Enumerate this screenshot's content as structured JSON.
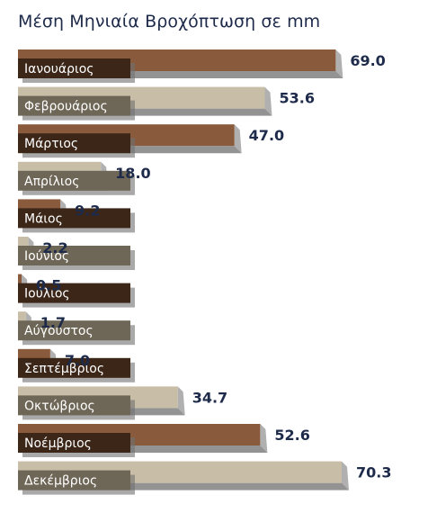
{
  "chart_data": {
    "type": "bar",
    "orientation": "horizontal",
    "title": "Μέση Μηνιαία Βροχόπτωση σε mm",
    "categories": [
      "Ιανουάριος",
      "Φεβρουάριος",
      "Μάρτιος",
      "Απρίλιος",
      "Μάιος",
      "Ιούνιος",
      "Ιούλιος",
      "Αύγουστος",
      "Σεπτέμβριος",
      "Οκτώβριος",
      "Νοέμβριος",
      "Δεκέμβριος"
    ],
    "values": [
      69.0,
      53.6,
      47.0,
      18.0,
      9.2,
      2.2,
      0.5,
      1.7,
      7.0,
      34.7,
      52.6,
      70.3
    ],
    "value_labels": [
      "69.0",
      "53.6",
      "47.0",
      "18.0",
      "9.2",
      "2.2",
      "0.5",
      "1.7",
      "7.0",
      "34.7",
      "52.6",
      "70.3"
    ],
    "xlabel": "",
    "ylabel": "",
    "xlim": [
      0,
      70.3
    ],
    "grid": false,
    "legend": "none",
    "colors": {
      "dark_bar": "#8a5a3c",
      "light_bar": "#c8bda6",
      "dark_label_bg": "#3b2618",
      "light_label_bg": "#6e6656",
      "shadow": "#6f6f6f",
      "value_text": "#1d2a4a"
    }
  }
}
